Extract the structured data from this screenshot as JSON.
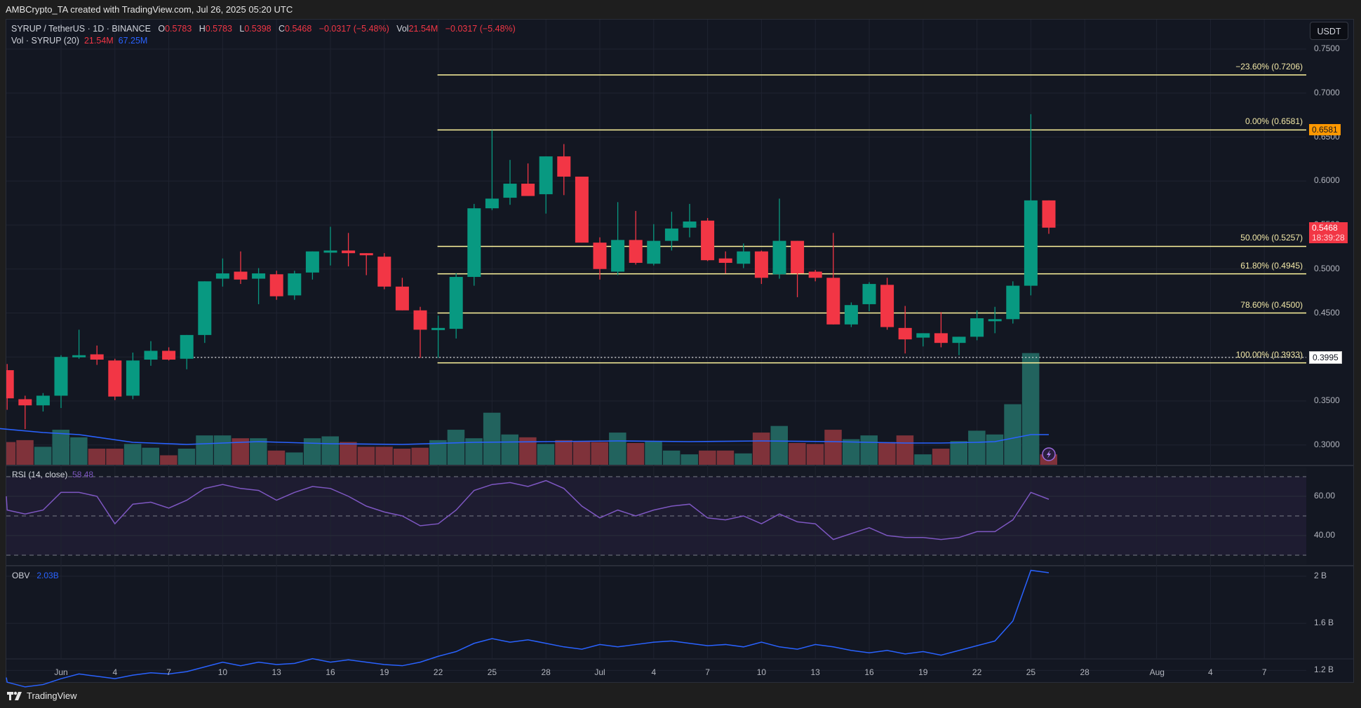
{
  "header": {
    "created_by": "AMBCrypto_TA created with TradingView.com, Jul 26, 2025 05:20 UTC"
  },
  "legend": {
    "symbol": "SYRUP / TetherUS · 1D · BINANCE",
    "open_label": "O",
    "open": "0.5783",
    "high_label": "H",
    "high": "0.5783",
    "low_label": "L",
    "low": "0.5398",
    "close_label": "C",
    "close": "0.5468",
    "change": "−0.0317 (−5.48%)",
    "vol_label": "Vol",
    "vol": "21.54M",
    "vol_change": "−0.0317 (−5.48%)",
    "volume_indicator": "Vol · SYRUP (20)",
    "volume_value": "21.54M",
    "volume_ma": "67.25M",
    "rsi_label": "RSI (14, close)",
    "rsi_value": "58.48",
    "obv_label": "OBV",
    "obv_value": "2.03B"
  },
  "currency_button": "USDT",
  "price_axis": [
    "0.7500",
    "0.7000",
    "0.6500",
    "0.6000",
    "0.5500",
    "0.5000",
    "0.4500",
    "0.4000",
    "0.3500",
    "0.3000"
  ],
  "price_tags": {
    "high_marker": "0.6581",
    "last_price": "0.5468",
    "countdown": "18:39:28",
    "dotted_level": "0.3995"
  },
  "fib_levels": [
    {
      "label": "−23.60% (0.7206)",
      "price": 0.7206
    },
    {
      "label": "0.00% (0.6581)",
      "price": 0.6581
    },
    {
      "label": "50.00% (0.5257)",
      "price": 0.5257
    },
    {
      "label": "61.80% (0.4945)",
      "price": 0.4945
    },
    {
      "label": "78.60% (0.4500)",
      "price": 0.45
    },
    {
      "label": "100.00% (0.3933)",
      "price": 0.3933
    }
  ],
  "rsi_axis": [
    "60.00",
    "40.00"
  ],
  "obv_axis": [
    "2 B",
    "1.6 B",
    "1.2 B"
  ],
  "time_axis": [
    {
      "label": "Jun",
      "day": 1
    },
    {
      "label": "4",
      "day": 4
    },
    {
      "label": "7",
      "day": 7
    },
    {
      "label": "10",
      "day": 10
    },
    {
      "label": "13",
      "day": 13
    },
    {
      "label": "16",
      "day": 16
    },
    {
      "label": "19",
      "day": 19
    },
    {
      "label": "22",
      "day": 22
    },
    {
      "label": "25",
      "day": 25
    },
    {
      "label": "28",
      "day": 28
    },
    {
      "label": "Jul",
      "day": 31
    },
    {
      "label": "4",
      "day": 34
    },
    {
      "label": "7",
      "day": 37
    },
    {
      "label": "10",
      "day": 40
    },
    {
      "label": "13",
      "day": 43
    },
    {
      "label": "16",
      "day": 46
    },
    {
      "label": "19",
      "day": 49
    },
    {
      "label": "22",
      "day": 52
    },
    {
      "label": "25",
      "day": 55
    },
    {
      "label": "28",
      "day": 58
    },
    {
      "label": "Aug",
      "day": 62
    },
    {
      "label": "4",
      "day": 65
    },
    {
      "label": "7",
      "day": 68
    }
  ],
  "colors": {
    "up": "#089981",
    "down": "#f23645",
    "vol_up": "#22635e",
    "vol_down": "#7f323a",
    "fib": "#fff59d",
    "vol_ma": "#2962ff",
    "rsi": "#7e57c2",
    "obv": "#2962ff",
    "tag_orange": "#ff9800"
  },
  "footer": {
    "brand": "TradingView"
  },
  "chart_data": {
    "type": "candlestick",
    "title": "SYRUP / TetherUS · 1D · BINANCE",
    "ylabel": "USDT",
    "ylim": [
      0.28,
      0.76
    ],
    "x_start_day_note": "day index 1 = Jun 1, 2025",
    "candles": [
      {
        "d": -3,
        "o": 0.4,
        "h": 0.432,
        "l": 0.386,
        "c": 0.371
      },
      {
        "d": -2,
        "o": 0.385,
        "h": 0.392,
        "l": 0.34,
        "c": 0.353
      },
      {
        "d": -1,
        "o": 0.352,
        "h": 0.356,
        "l": 0.318,
        "c": 0.345
      },
      {
        "d": 0,
        "o": 0.345,
        "h": 0.359,
        "l": 0.338,
        "c": 0.356
      },
      {
        "d": 1,
        "o": 0.356,
        "h": 0.402,
        "l": 0.342,
        "c": 0.4
      },
      {
        "d": 2,
        "o": 0.4,
        "h": 0.431,
        "l": 0.398,
        "c": 0.402
      },
      {
        "d": 3,
        "o": 0.403,
        "h": 0.413,
        "l": 0.391,
        "c": 0.397
      },
      {
        "d": 4,
        "o": 0.396,
        "h": 0.398,
        "l": 0.351,
        "c": 0.355
      },
      {
        "d": 5,
        "o": 0.356,
        "h": 0.405,
        "l": 0.352,
        "c": 0.396
      },
      {
        "d": 6,
        "o": 0.397,
        "h": 0.418,
        "l": 0.39,
        "c": 0.407
      },
      {
        "d": 7,
        "o": 0.407,
        "h": 0.411,
        "l": 0.396,
        "c": 0.397
      },
      {
        "d": 8,
        "o": 0.398,
        "h": 0.421,
        "l": 0.386,
        "c": 0.425
      },
      {
        "d": 9,
        "o": 0.425,
        "h": 0.461,
        "l": 0.416,
        "c": 0.486
      },
      {
        "d": 10,
        "o": 0.489,
        "h": 0.512,
        "l": 0.48,
        "c": 0.495
      },
      {
        "d": 11,
        "o": 0.497,
        "h": 0.52,
        "l": 0.483,
        "c": 0.488
      },
      {
        "d": 12,
        "o": 0.489,
        "h": 0.501,
        "l": 0.46,
        "c": 0.495
      },
      {
        "d": 13,
        "o": 0.494,
        "h": 0.498,
        "l": 0.465,
        "c": 0.469
      },
      {
        "d": 14,
        "o": 0.47,
        "h": 0.498,
        "l": 0.465,
        "c": 0.495
      },
      {
        "d": 15,
        "o": 0.496,
        "h": 0.52,
        "l": 0.488,
        "c": 0.52
      },
      {
        "d": 16,
        "o": 0.521,
        "h": 0.548,
        "l": 0.504,
        "c": 0.521
      },
      {
        "d": 17,
        "o": 0.521,
        "h": 0.541,
        "l": 0.503,
        "c": 0.518
      },
      {
        "d": 18,
        "o": 0.518,
        "h": 0.515,
        "l": 0.493,
        "c": 0.516
      },
      {
        "d": 19,
        "o": 0.514,
        "h": 0.518,
        "l": 0.477,
        "c": 0.48
      },
      {
        "d": 20,
        "o": 0.48,
        "h": 0.49,
        "l": 0.46,
        "c": 0.453
      },
      {
        "d": 21,
        "o": 0.453,
        "h": 0.457,
        "l": 0.399,
        "c": 0.431
      },
      {
        "d": 22,
        "o": 0.431,
        "h": 0.447,
        "l": 0.399,
        "c": 0.433
      },
      {
        "d": 23,
        "o": 0.432,
        "h": 0.495,
        "l": 0.421,
        "c": 0.491
      },
      {
        "d": 24,
        "o": 0.491,
        "h": 0.574,
        "l": 0.481,
        "c": 0.569
      },
      {
        "d": 25,
        "o": 0.569,
        "h": 0.658,
        "l": 0.567,
        "c": 0.58
      },
      {
        "d": 26,
        "o": 0.581,
        "h": 0.624,
        "l": 0.573,
        "c": 0.597
      },
      {
        "d": 27,
        "o": 0.597,
        "h": 0.62,
        "l": 0.583,
        "c": 0.583
      },
      {
        "d": 28,
        "o": 0.585,
        "h": 0.628,
        "l": 0.563,
        "c": 0.628
      },
      {
        "d": 29,
        "o": 0.628,
        "h": 0.642,
        "l": 0.584,
        "c": 0.605
      },
      {
        "d": 30,
        "o": 0.605,
        "h": 0.605,
        "l": 0.555,
        "c": 0.53
      },
      {
        "d": 31,
        "o": 0.53,
        "h": 0.536,
        "l": 0.488,
        "c": 0.5
      },
      {
        "d": 32,
        "o": 0.497,
        "h": 0.576,
        "l": 0.493,
        "c": 0.533
      },
      {
        "d": 33,
        "o": 0.533,
        "h": 0.566,
        "l": 0.505,
        "c": 0.507
      },
      {
        "d": 34,
        "o": 0.506,
        "h": 0.551,
        "l": 0.504,
        "c": 0.532
      },
      {
        "d": 35,
        "o": 0.532,
        "h": 0.565,
        "l": 0.521,
        "c": 0.546
      },
      {
        "d": 36,
        "o": 0.547,
        "h": 0.574,
        "l": 0.536,
        "c": 0.554
      },
      {
        "d": 37,
        "o": 0.555,
        "h": 0.558,
        "l": 0.509,
        "c": 0.51
      },
      {
        "d": 38,
        "o": 0.512,
        "h": 0.52,
        "l": 0.495,
        "c": 0.507
      },
      {
        "d": 39,
        "o": 0.506,
        "h": 0.529,
        "l": 0.501,
        "c": 0.52
      },
      {
        "d": 40,
        "o": 0.52,
        "h": 0.521,
        "l": 0.483,
        "c": 0.49
      },
      {
        "d": 41,
        "o": 0.494,
        "h": 0.58,
        "l": 0.489,
        "c": 0.532
      },
      {
        "d": 42,
        "o": 0.532,
        "h": 0.53,
        "l": 0.468,
        "c": 0.495
      },
      {
        "d": 43,
        "o": 0.497,
        "h": 0.499,
        "l": 0.486,
        "c": 0.49
      },
      {
        "d": 44,
        "o": 0.49,
        "h": 0.541,
        "l": 0.438,
        "c": 0.437
      },
      {
        "d": 45,
        "o": 0.437,
        "h": 0.462,
        "l": 0.434,
        "c": 0.459
      },
      {
        "d": 46,
        "o": 0.46,
        "h": 0.485,
        "l": 0.452,
        "c": 0.483
      },
      {
        "d": 47,
        "o": 0.482,
        "h": 0.49,
        "l": 0.431,
        "c": 0.434
      },
      {
        "d": 48,
        "o": 0.433,
        "h": 0.458,
        "l": 0.404,
        "c": 0.42
      },
      {
        "d": 49,
        "o": 0.422,
        "h": 0.426,
        "l": 0.412,
        "c": 0.427
      },
      {
        "d": 50,
        "o": 0.427,
        "h": 0.451,
        "l": 0.411,
        "c": 0.416
      },
      {
        "d": 51,
        "o": 0.416,
        "h": 0.422,
        "l": 0.402,
        "c": 0.423
      },
      {
        "d": 52,
        "o": 0.423,
        "h": 0.453,
        "l": 0.419,
        "c": 0.444
      },
      {
        "d": 53,
        "o": 0.443,
        "h": 0.457,
        "l": 0.427,
        "c": 0.443
      },
      {
        "d": 54,
        "o": 0.443,
        "h": 0.486,
        "l": 0.438,
        "c": 0.481
      },
      {
        "d": 55,
        "o": 0.481,
        "h": 0.676,
        "l": 0.47,
        "c": 0.578
      },
      {
        "d": 56,
        "o": 0.578,
        "h": 0.578,
        "l": 0.54,
        "c": 0.547
      }
    ],
    "volume": [
      {
        "d": -3,
        "v": 22
      },
      {
        "d": -2,
        "v": 24
      },
      {
        "d": -1,
        "v": 26
      },
      {
        "d": 0,
        "v": 19
      },
      {
        "d": 1,
        "v": 37
      },
      {
        "d": 2,
        "v": 29
      },
      {
        "d": 3,
        "v": 17
      },
      {
        "d": 4,
        "v": 17
      },
      {
        "d": 5,
        "v": 22
      },
      {
        "d": 6,
        "v": 18
      },
      {
        "d": 7,
        "v": 10
      },
      {
        "d": 8,
        "v": 17
      },
      {
        "d": 9,
        "v": 31
      },
      {
        "d": 10,
        "v": 31
      },
      {
        "d": 11,
        "v": 28
      },
      {
        "d": 12,
        "v": 28
      },
      {
        "d": 13,
        "v": 15
      },
      {
        "d": 14,
        "v": 13
      },
      {
        "d": 15,
        "v": 28
      },
      {
        "d": 16,
        "v": 30
      },
      {
        "d": 17,
        "v": 24
      },
      {
        "d": 18,
        "v": 19
      },
      {
        "d": 19,
        "v": 19
      },
      {
        "d": 20,
        "v": 17
      },
      {
        "d": 21,
        "v": 18
      },
      {
        "d": 22,
        "v": 26
      },
      {
        "d": 23,
        "v": 37
      },
      {
        "d": 24,
        "v": 28
      },
      {
        "d": 25,
        "v": 55
      },
      {
        "d": 26,
        "v": 32
      },
      {
        "d": 27,
        "v": 29
      },
      {
        "d": 28,
        "v": 22
      },
      {
        "d": 29,
        "v": 26
      },
      {
        "d": 30,
        "v": 25
      },
      {
        "d": 31,
        "v": 24
      },
      {
        "d": 32,
        "v": 34
      },
      {
        "d": 33,
        "v": 23
      },
      {
        "d": 34,
        "v": 25
      },
      {
        "d": 35,
        "v": 15
      },
      {
        "d": 36,
        "v": 11
      },
      {
        "d": 37,
        "v": 15
      },
      {
        "d": 38,
        "v": 15
      },
      {
        "d": 39,
        "v": 12
      },
      {
        "d": 40,
        "v": 34
      },
      {
        "d": 41,
        "v": 41
      },
      {
        "d": 42,
        "v": 23
      },
      {
        "d": 43,
        "v": 22
      },
      {
        "d": 44,
        "v": 37
      },
      {
        "d": 45,
        "v": 27
      },
      {
        "d": 46,
        "v": 31
      },
      {
        "d": 47,
        "v": 24
      },
      {
        "d": 48,
        "v": 31
      },
      {
        "d": 49,
        "v": 11
      },
      {
        "d": 50,
        "v": 17
      },
      {
        "d": 51,
        "v": 25
      },
      {
        "d": 52,
        "v": 36
      },
      {
        "d": 53,
        "v": 32
      },
      {
        "d": 54,
        "v": 64
      },
      {
        "d": 55,
        "v": 118
      },
      {
        "d": 56,
        "v": 11
      }
    ],
    "rsi": [
      {
        "d": -3,
        "v": 60
      },
      {
        "d": -2,
        "v": 53
      },
      {
        "d": -1,
        "v": 51
      },
      {
        "d": 0,
        "v": 53
      },
      {
        "d": 1,
        "v": 62
      },
      {
        "d": 2,
        "v": 62
      },
      {
        "d": 3,
        "v": 60
      },
      {
        "d": 4,
        "v": 46
      },
      {
        "d": 5,
        "v": 56
      },
      {
        "d": 6,
        "v": 57
      },
      {
        "d": 7,
        "v": 54
      },
      {
        "d": 8,
        "v": 58
      },
      {
        "d": 9,
        "v": 64
      },
      {
        "d": 10,
        "v": 66
      },
      {
        "d": 11,
        "v": 64
      },
      {
        "d": 12,
        "v": 63
      },
      {
        "d": 13,
        "v": 58
      },
      {
        "d": 14,
        "v": 62
      },
      {
        "d": 15,
        "v": 65
      },
      {
        "d": 16,
        "v": 64
      },
      {
        "d": 17,
        "v": 60
      },
      {
        "d": 18,
        "v": 55
      },
      {
        "d": 19,
        "v": 52
      },
      {
        "d": 20,
        "v": 50
      },
      {
        "d": 21,
        "v": 45
      },
      {
        "d": 22,
        "v": 46
      },
      {
        "d": 23,
        "v": 53
      },
      {
        "d": 24,
        "v": 63
      },
      {
        "d": 25,
        "v": 66
      },
      {
        "d": 26,
        "v": 67
      },
      {
        "d": 27,
        "v": 65
      },
      {
        "d": 28,
        "v": 68
      },
      {
        "d": 29,
        "v": 64
      },
      {
        "d": 30,
        "v": 55
      },
      {
        "d": 31,
        "v": 49
      },
      {
        "d": 32,
        "v": 53
      },
      {
        "d": 33,
        "v": 50
      },
      {
        "d": 34,
        "v": 53
      },
      {
        "d": 35,
        "v": 55
      },
      {
        "d": 36,
        "v": 56
      },
      {
        "d": 37,
        "v": 49
      },
      {
        "d": 38,
        "v": 48
      },
      {
        "d": 39,
        "v": 50
      },
      {
        "d": 40,
        "v": 46
      },
      {
        "d": 41,
        "v": 51
      },
      {
        "d": 42,
        "v": 47
      },
      {
        "d": 43,
        "v": 46
      },
      {
        "d": 44,
        "v": 38
      },
      {
        "d": 45,
        "v": 41
      },
      {
        "d": 46,
        "v": 44
      },
      {
        "d": 47,
        "v": 40
      },
      {
        "d": 48,
        "v": 39
      },
      {
        "d": 49,
        "v": 39
      },
      {
        "d": 50,
        "v": 38
      },
      {
        "d": 51,
        "v": 39
      },
      {
        "d": 52,
        "v": 42
      },
      {
        "d": 53,
        "v": 42
      },
      {
        "d": 54,
        "v": 48
      },
      {
        "d": 55,
        "v": 62
      },
      {
        "d": 56,
        "v": 58.48
      }
    ],
    "obv": [
      {
        "d": -3,
        "v": 1.14
      },
      {
        "d": -2,
        "v": 1.1
      },
      {
        "d": -1,
        "v": 1.06
      },
      {
        "d": 0,
        "v": 1.08
      },
      {
        "d": 1,
        "v": 1.13
      },
      {
        "d": 2,
        "v": 1.17
      },
      {
        "d": 3,
        "v": 1.15
      },
      {
        "d": 4,
        "v": 1.13
      },
      {
        "d": 5,
        "v": 1.16
      },
      {
        "d": 6,
        "v": 1.18
      },
      {
        "d": 7,
        "v": 1.17
      },
      {
        "d": 8,
        "v": 1.19
      },
      {
        "d": 9,
        "v": 1.23
      },
      {
        "d": 10,
        "v": 1.27
      },
      {
        "d": 11,
        "v": 1.24
      },
      {
        "d": 12,
        "v": 1.27
      },
      {
        "d": 13,
        "v": 1.25
      },
      {
        "d": 14,
        "v": 1.26
      },
      {
        "d": 15,
        "v": 1.3
      },
      {
        "d": 16,
        "v": 1.27
      },
      {
        "d": 17,
        "v": 1.29
      },
      {
        "d": 18,
        "v": 1.27
      },
      {
        "d": 19,
        "v": 1.25
      },
      {
        "d": 20,
        "v": 1.24
      },
      {
        "d": 21,
        "v": 1.27
      },
      {
        "d": 22,
        "v": 1.32
      },
      {
        "d": 23,
        "v": 1.36
      },
      {
        "d": 24,
        "v": 1.43
      },
      {
        "d": 25,
        "v": 1.47
      },
      {
        "d": 26,
        "v": 1.44
      },
      {
        "d": 27,
        "v": 1.46
      },
      {
        "d": 28,
        "v": 1.43
      },
      {
        "d": 29,
        "v": 1.4
      },
      {
        "d": 30,
        "v": 1.38
      },
      {
        "d": 31,
        "v": 1.42
      },
      {
        "d": 32,
        "v": 1.4
      },
      {
        "d": 33,
        "v": 1.42
      },
      {
        "d": 34,
        "v": 1.44
      },
      {
        "d": 35,
        "v": 1.45
      },
      {
        "d": 36,
        "v": 1.43
      },
      {
        "d": 37,
        "v": 1.41
      },
      {
        "d": 38,
        "v": 1.42
      },
      {
        "d": 39,
        "v": 1.4
      },
      {
        "d": 40,
        "v": 1.44
      },
      {
        "d": 41,
        "v": 1.4
      },
      {
        "d": 42,
        "v": 1.38
      },
      {
        "d": 43,
        "v": 1.42
      },
      {
        "d": 44,
        "v": 1.4
      },
      {
        "d": 45,
        "v": 1.37
      },
      {
        "d": 46,
        "v": 1.35
      },
      {
        "d": 47,
        "v": 1.37
      },
      {
        "d": 48,
        "v": 1.34
      },
      {
        "d": 49,
        "v": 1.36
      },
      {
        "d": 50,
        "v": 1.33
      },
      {
        "d": 51,
        "v": 1.37
      },
      {
        "d": 52,
        "v": 1.41
      },
      {
        "d": 53,
        "v": 1.45
      },
      {
        "d": 54,
        "v": 1.62
      },
      {
        "d": 55,
        "v": 2.05
      },
      {
        "d": 56,
        "v": 2.03
      }
    ]
  }
}
